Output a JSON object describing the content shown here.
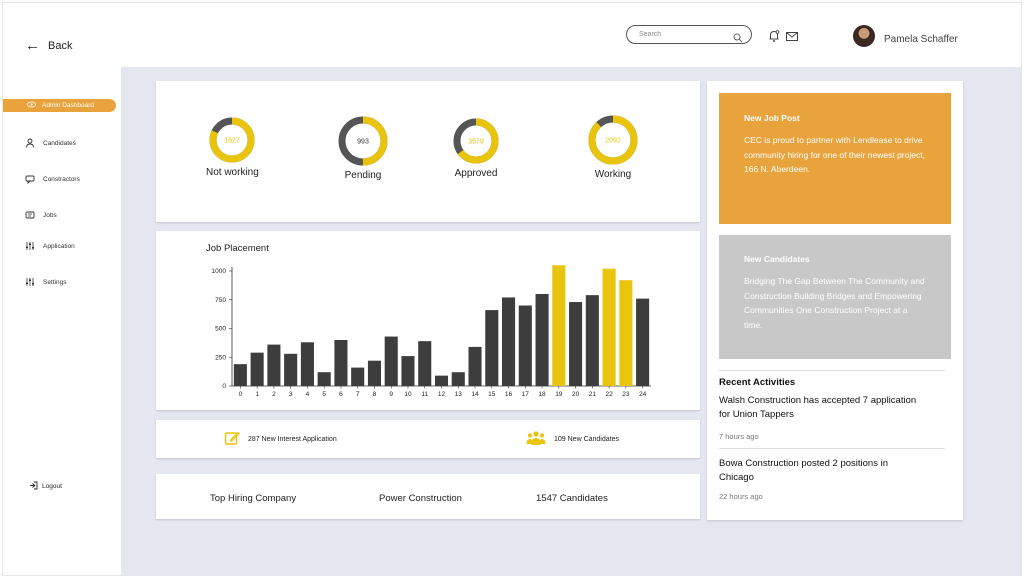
{
  "header": {
    "back_label": "Back",
    "search_placeholder": "Search",
    "user_name": "Pamela Schaffer"
  },
  "sidebar": {
    "items": [
      {
        "label": "Admin Dashboard",
        "icon": "eye-icon",
        "active": true
      },
      {
        "label": "Candidates",
        "icon": "user-icon"
      },
      {
        "label": "Constractors",
        "icon": "chat-icon"
      },
      {
        "label": "Jobs",
        "icon": "id-card-icon"
      },
      {
        "label": "Application",
        "icon": "sliders-icon"
      },
      {
        "label": "Settings",
        "icon": "sliders-icon"
      }
    ],
    "logout_label": "Logout"
  },
  "status": [
    {
      "value": "1627",
      "label": "Not working",
      "fill_fraction": 0.82
    },
    {
      "value": "993",
      "label": "Pending",
      "fill_fraction": 0.5
    },
    {
      "value": "3579",
      "label": "Approved",
      "fill_fraction": 0.65
    },
    {
      "value": "2092",
      "label": "Working",
      "fill_fraction": 0.88
    }
  ],
  "colors": {
    "accent": "#e8c40c",
    "ring_gray": "#555555",
    "bar_dark": "#3d3d3d",
    "bar_highlight": "#e8c40c",
    "promo_orange": "#e8a33c",
    "promo_gray": "#c8c8c8"
  },
  "chart_data": {
    "type": "bar",
    "title": "Job Placement",
    "categories": [
      "0",
      "1",
      "2",
      "3",
      "4",
      "5",
      "6",
      "7",
      "8",
      "9",
      "10",
      "11",
      "12",
      "13",
      "14",
      "15",
      "16",
      "17",
      "18",
      "19",
      "20",
      "21",
      "22",
      "23",
      "24"
    ],
    "values": [
      190,
      290,
      360,
      280,
      380,
      120,
      400,
      160,
      220,
      430,
      260,
      390,
      90,
      120,
      340,
      660,
      770,
      700,
      800,
      1050,
      730,
      790,
      1020,
      920,
      760
    ],
    "highlight": [
      "19",
      "22",
      "23"
    ],
    "yticks": [
      0,
      250,
      500,
      750,
      1000
    ],
    "ylim": [
      0,
      1000
    ]
  },
  "stats": {
    "interest": "287 New Interest Application",
    "candidates": "109 New Candidates"
  },
  "hiring": {
    "label": "Top Hiring Company",
    "company": "Power Construction",
    "count": "1547 Candidates"
  },
  "promo_job": {
    "title": "New Job Post",
    "text": "CEC is proud to partner with Lendlease to drive community hiring for one of their newest project, 166 N. Aberdeen."
  },
  "promo_candidates": {
    "title": "New Candidates",
    "text": "Bridging The Gap Between The Community and Construction Building Bridges and Empowering Communities One Construction Project at a time."
  },
  "activities": {
    "title": "Recent Activities",
    "items": [
      {
        "text": "Walsh Construction has accepted 7 application for Union Tappers",
        "time": "7 hours ago"
      },
      {
        "text": "Bowa Construction posted 2 positions in Chicago",
        "time": "22 hours ago"
      }
    ]
  }
}
